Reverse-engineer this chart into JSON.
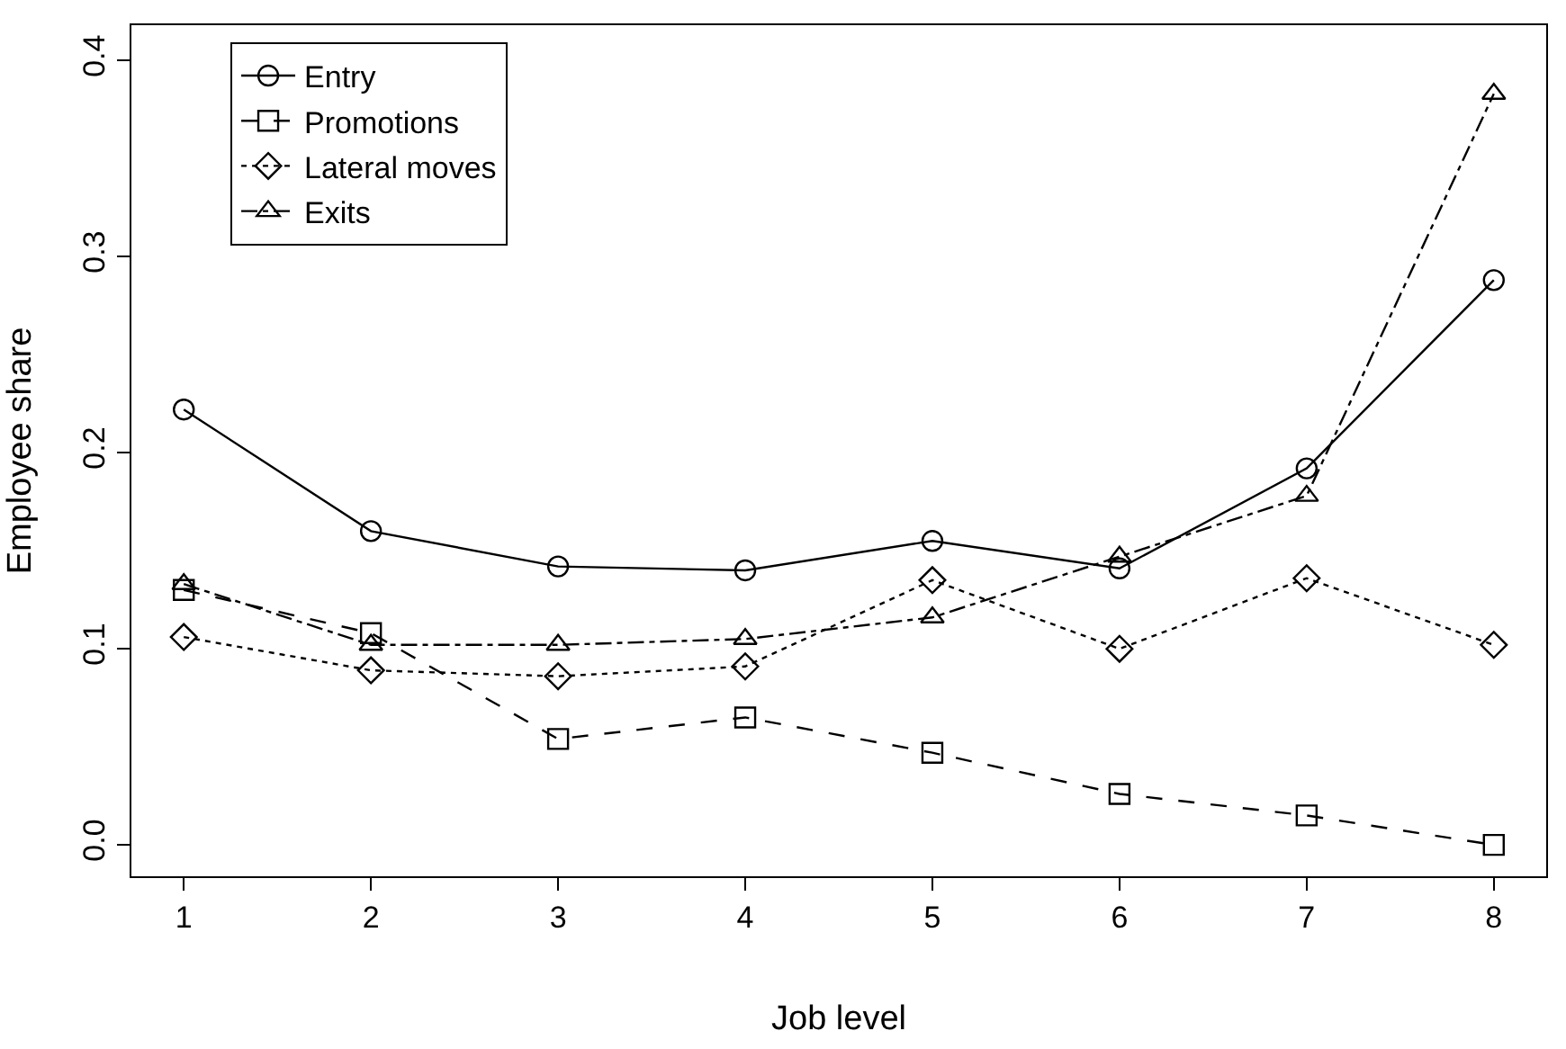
{
  "chart_data": {
    "type": "line",
    "xlabel": "Job level",
    "ylabel": "Employee share",
    "x": [
      1,
      2,
      3,
      4,
      5,
      6,
      7,
      8
    ],
    "series": [
      {
        "name": "Entry",
        "color": "#000000",
        "marker": "circle",
        "line_style": "solid",
        "values": [
          0.222,
          0.16,
          0.142,
          0.14,
          0.155,
          0.141,
          0.192,
          0.288
        ]
      },
      {
        "name": "Promotions",
        "color": "#000000",
        "marker": "square",
        "line_style": "dashed",
        "values": [
          0.13,
          0.108,
          0.054,
          0.065,
          0.047,
          0.026,
          0.015,
          0.0
        ]
      },
      {
        "name": "Lateral moves",
        "color": "#000000",
        "marker": "diamond",
        "line_style": "dotted",
        "values": [
          0.106,
          0.089,
          0.086,
          0.091,
          0.135,
          0.1,
          0.136,
          0.102
        ]
      },
      {
        "name": "Exits",
        "color": "#000000",
        "marker": "triangle",
        "line_style": "dashdot",
        "values": [
          0.133,
          0.102,
          0.102,
          0.105,
          0.116,
          0.147,
          0.178,
          0.383
        ]
      }
    ],
    "xlim": [
      0.72,
      8.28
    ],
    "ylim": [
      -0.016,
      0.418
    ],
    "xticks": [
      1,
      2,
      3,
      4,
      5,
      6,
      7,
      8
    ],
    "yticks": [
      {
        "value": 0,
        "label": "0.0"
      },
      0.1,
      0.2,
      0.3,
      0.4
    ],
    "legend": "top left"
  }
}
